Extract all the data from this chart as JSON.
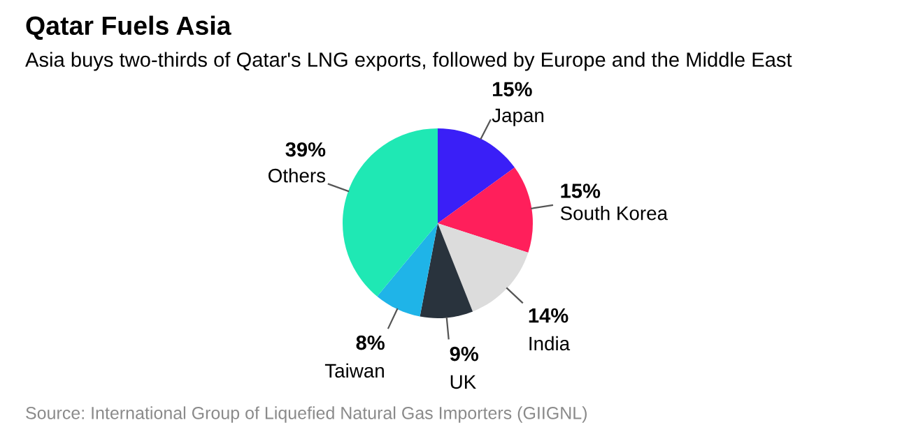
{
  "chart_data": {
    "type": "pie",
    "title": "Qatar Fuels Asia",
    "subtitle": "Asia buys two-thirds of Qatar's LNG exports, followed by Europe and the Middle East",
    "categories": [
      "Japan",
      "South Korea",
      "India",
      "UK",
      "Taiwan",
      "Others"
    ],
    "values": [
      15,
      15,
      14,
      9,
      8,
      39
    ],
    "value_labels": [
      "15%",
      "15%",
      "14%",
      "9%",
      "8%",
      "39%"
    ],
    "colors": [
      "#3a1ff7",
      "#ff1f5b",
      "#dcdcdc",
      "#29333d",
      "#1fb4e8",
      "#1fe8b4"
    ],
    "annotations": [
      "Source: International Group of Liquefied Natural Gas Importers (GIIGNL)"
    ],
    "legend": false
  }
}
